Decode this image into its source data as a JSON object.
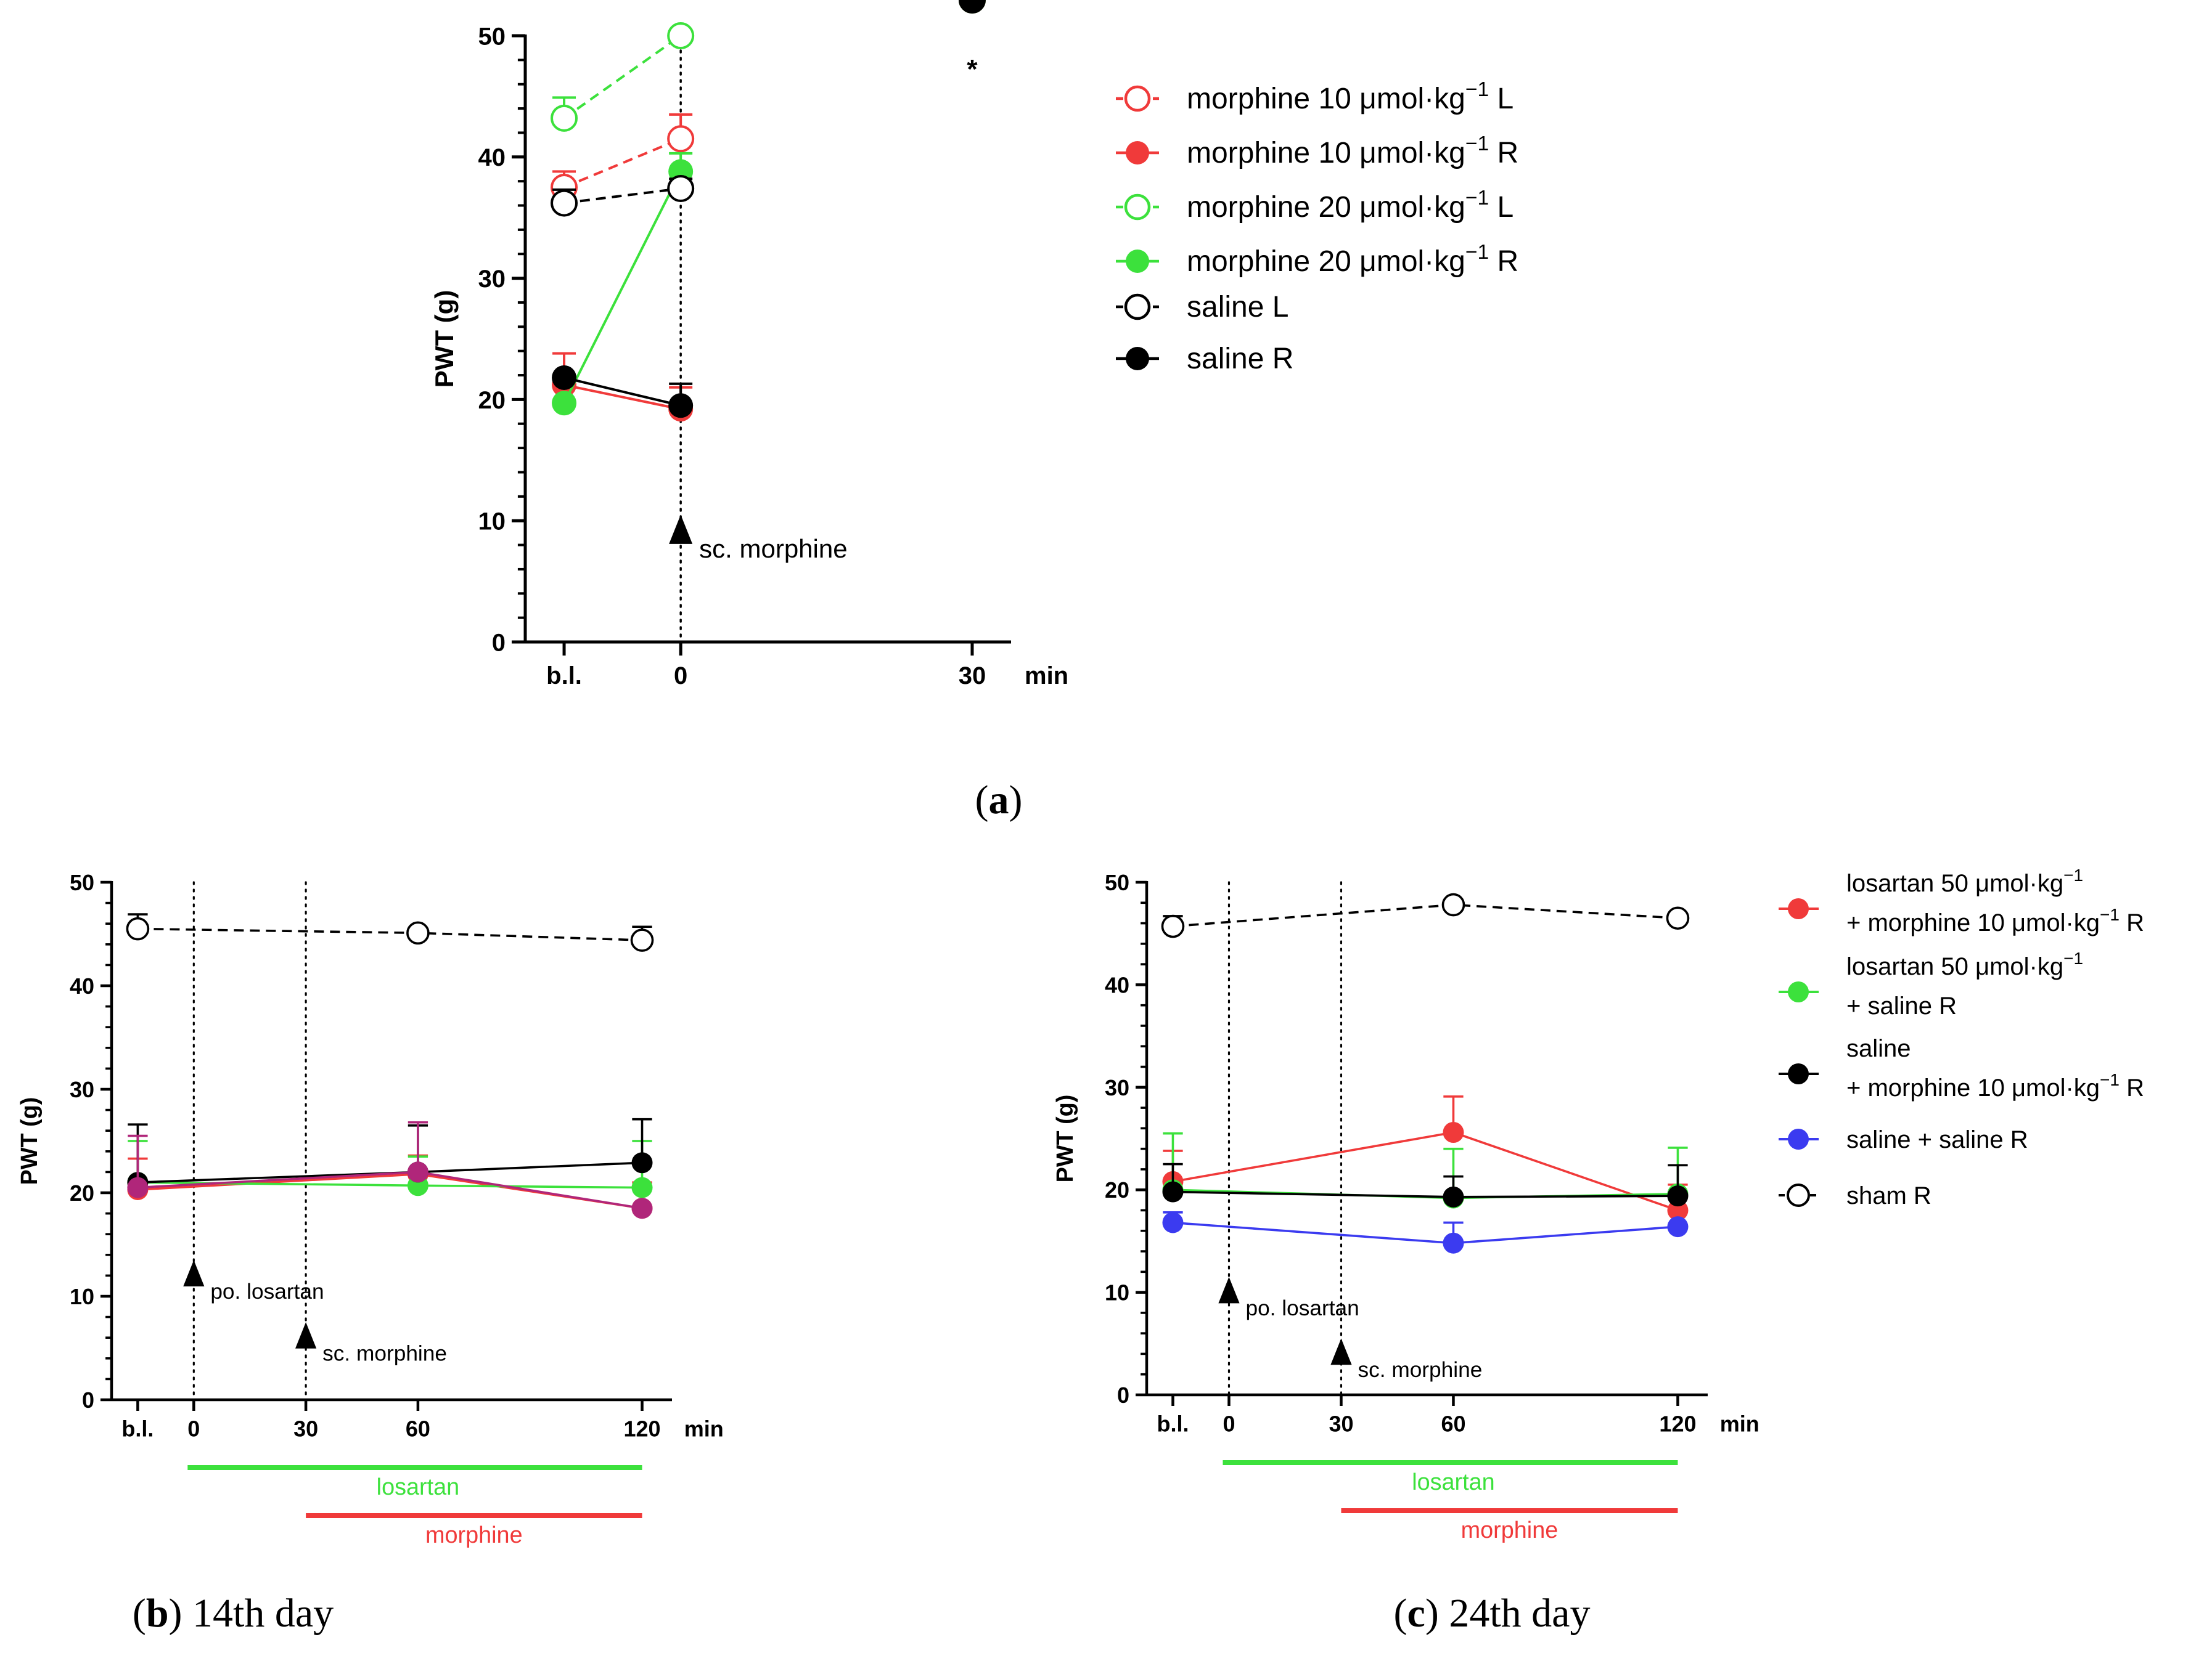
{
  "colors": {
    "red": "#f03a3a",
    "green": "#3ce13c",
    "black": "#000000",
    "blue": "#3b3bf0",
    "purple": "#b0267a"
  },
  "chart_data": [
    {
      "id": "a",
      "type": "line",
      "caption_letter": "a",
      "ylabel": "PWT (g)",
      "x_unit": "min",
      "ylim": [
        0,
        50
      ],
      "yticks": [
        0,
        10,
        20,
        30,
        40,
        50
      ],
      "x_positions": [
        -12,
        0,
        30
      ],
      "xticks": [
        {
          "label": "b.l.",
          "x": -12
        },
        {
          "label": "0",
          "x": 0
        },
        {
          "label": "30",
          "x": 30
        }
      ],
      "xlim": [
        -16,
        34
      ],
      "series": [
        {
          "name": "morphine 10 μmol·kg⁻¹ L",
          "color": "red",
          "marker": "open",
          "dashed": true,
          "y": [
            37.5,
            41.5
          ],
          "err": [
            1.3,
            2.0
          ]
        },
        {
          "name": "morphine 10 μmol·kg⁻¹ R",
          "color": "red",
          "marker": "filled",
          "dashed": false,
          "y": [
            21.2,
            19.2
          ],
          "err": [
            2.6,
            1.8
          ]
        },
        {
          "name": "morphine 20 μmol·kg⁻¹ L",
          "color": "green",
          "marker": "open",
          "dashed": true,
          "y": [
            43.2,
            50.0
          ],
          "err": [
            1.7,
            0
          ]
        },
        {
          "name": "morphine 20 μmol·kg⁻¹ R",
          "color": "green",
          "marker": "filled",
          "dashed": false,
          "y": [
            19.7,
            38.8
          ],
          "err": [
            0,
            1.5
          ]
        },
        {
          "name": "saline L",
          "color": "black",
          "marker": "open",
          "dashed": true,
          "y": [
            36.2,
            37.4
          ],
          "err": [
            1.1,
            0.8
          ]
        },
        {
          "name": "saline R",
          "color": "black",
          "marker": "filled",
          "dashed": false,
          "y": [
            21.8,
            19.5
          ],
          "err": [
            0,
            1.8
          ]
        }
      ],
      "annotations": [
        {
          "text": "*",
          "x": 30,
          "y": 46.5
        },
        {
          "text": "sc. morphine",
          "arrow_x": 0,
          "arrow_y": 10.5
        }
      ]
    },
    {
      "id": "b",
      "type": "line",
      "caption_letter": "b",
      "caption_rest": " 14th day",
      "ylabel": "PWT (g)",
      "x_unit": "min",
      "ylim": [
        0,
        50
      ],
      "yticks": [
        0,
        10,
        20,
        30,
        40,
        50
      ],
      "xticks": [
        {
          "label": "b.l.",
          "x": -15
        },
        {
          "label": "0",
          "x": 0
        },
        {
          "label": "30",
          "x": 30
        },
        {
          "label": "60",
          "x": 60
        },
        {
          "label": "120",
          "x": 120
        }
      ],
      "xlim": [
        -22,
        128
      ],
      "series": [
        {
          "name": "losartan 50 μmol·kg⁻¹ + morphine 10 μmol·kg⁻¹ R",
          "color": "red",
          "marker": "filled",
          "dashed": false,
          "x": [
            -15,
            60,
            120
          ],
          "y": [
            20.3,
            21.8,
            18.5
          ],
          "err": [
            3.0,
            1.8,
            2.5
          ]
        },
        {
          "name": "losartan 50 μmol·kg⁻¹ + saline R",
          "color": "green",
          "marker": "filled",
          "dashed": false,
          "x": [
            -15,
            60,
            120
          ],
          "y": [
            21.0,
            20.7,
            20.5
          ],
          "err": [
            4.0,
            2.8,
            4.5
          ]
        },
        {
          "name": "saline + morphine 10 μmol·kg⁻¹ R",
          "color": "black",
          "marker": "filled",
          "dashed": false,
          "x": [
            -15,
            60,
            120
          ],
          "y": [
            21.0,
            22.0,
            22.9
          ],
          "err": [
            5.6,
            4.5,
            4.2
          ]
        },
        {
          "name": "saline + saline R",
          "color": "purple",
          "marker": "filled",
          "dashed": false,
          "x": [
            -15,
            60,
            120
          ],
          "y": [
            20.5,
            22.0,
            18.5
          ],
          "err": [
            5.0,
            4.8,
            0
          ]
        },
        {
          "name": "sham R",
          "color": "black",
          "marker": "open",
          "dashed": true,
          "x": [
            -15,
            60,
            120
          ],
          "y": [
            45.5,
            45.1,
            44.4
          ],
          "err": [
            1.4,
            0,
            1.3
          ]
        }
      ],
      "vlines": [
        0,
        30
      ],
      "annotations": [
        {
          "text": "po. losartan",
          "arrow_x": 0,
          "arrow_y": 13.5
        },
        {
          "text": "sc. morphine",
          "arrow_x": 30,
          "arrow_y": 7.5
        }
      ],
      "bars": [
        {
          "label": "losartan",
          "color": "green",
          "from": 0,
          "to": 120
        },
        {
          "label": "morphine",
          "color": "red",
          "from": 30,
          "to": 120
        }
      ]
    },
    {
      "id": "c",
      "type": "line",
      "caption_letter": "c",
      "caption_rest": " 24th day",
      "ylabel": "PWT (g)",
      "x_unit": "min",
      "ylim": [
        0,
        50
      ],
      "yticks": [
        0,
        10,
        20,
        30,
        40,
        50
      ],
      "xticks": [
        {
          "label": "b.l.",
          "x": -15
        },
        {
          "label": "0",
          "x": 0
        },
        {
          "label": "30",
          "x": 30
        },
        {
          "label": "60",
          "x": 60
        },
        {
          "label": "120",
          "x": 120
        }
      ],
      "xlim": [
        -22,
        128
      ],
      "series": [
        {
          "name": "losartan 50 μmol·kg⁻¹ + morphine 10 μmol·kg⁻¹ R",
          "color": "red",
          "marker": "filled",
          "dashed": false,
          "x": [
            -15,
            60,
            120
          ],
          "y": [
            20.8,
            25.6,
            18.0
          ],
          "err": [
            3.0,
            3.5,
            2.5
          ]
        },
        {
          "name": "losartan 50 μmol·kg⁻¹ + saline R",
          "color": "green",
          "marker": "filled",
          "dashed": false,
          "x": [
            -15,
            60,
            120
          ],
          "y": [
            20.0,
            19.2,
            19.6
          ],
          "err": [
            5.5,
            4.8,
            4.5
          ]
        },
        {
          "name": "saline + morphine 10 μmol·kg⁻¹ R",
          "color": "black",
          "marker": "filled",
          "dashed": false,
          "x": [
            -15,
            60,
            120
          ],
          "y": [
            19.8,
            19.3,
            19.4
          ],
          "err": [
            2.7,
            2.0,
            3.0
          ]
        },
        {
          "name": "saline + saline R",
          "color": "blue",
          "marker": "filled",
          "dashed": false,
          "x": [
            -15,
            60,
            120
          ],
          "y": [
            16.8,
            14.8,
            16.4
          ],
          "err": [
            1.0,
            2.0,
            0
          ]
        },
        {
          "name": "sham R",
          "color": "black",
          "marker": "open",
          "dashed": true,
          "x": [
            -15,
            60,
            120
          ],
          "y": [
            45.7,
            47.8,
            46.5
          ],
          "err": [
            1.0,
            0,
            0
          ]
        }
      ],
      "vlines": [
        0,
        30
      ],
      "annotations": [
        {
          "text": "po. losartan",
          "arrow_x": 0,
          "arrow_y": 11.5
        },
        {
          "text": "sc. morphine",
          "arrow_x": 30,
          "arrow_y": 5.5
        }
      ],
      "bars": [
        {
          "label": "losartan",
          "color": "green",
          "from": 0,
          "to": 120
        },
        {
          "label": "morphine",
          "color": "red",
          "from": 30,
          "to": 120
        }
      ]
    }
  ],
  "legend_a": [
    {
      "text": "morphine 10 μmol·kg",
      "sup": "−1",
      "tail": " L",
      "color": "red",
      "marker": "open",
      "dashed": true
    },
    {
      "text": "morphine 10 μmol·kg",
      "sup": "−1",
      "tail": " R",
      "color": "red",
      "marker": "filled",
      "dashed": false
    },
    {
      "text": "morphine 20 μmol·kg",
      "sup": "−1",
      "tail": " L",
      "color": "green",
      "marker": "open",
      "dashed": true
    },
    {
      "text": "morphine 20 μmol·kg",
      "sup": "−1",
      "tail": " R",
      "color": "green",
      "marker": "filled",
      "dashed": false
    },
    {
      "text": "saline L",
      "sup": "",
      "tail": "",
      "color": "black",
      "marker": "open",
      "dashed": true
    },
    {
      "text": "saline R",
      "sup": "",
      "tail": "",
      "color": "black",
      "marker": "filled",
      "dashed": false
    }
  ],
  "legend_c": [
    {
      "color": "red",
      "marker": "filled",
      "dashed": false,
      "lines": [
        {
          "text": "losartan 50 μmol·kg",
          "sup": "−1",
          "tail": ""
        },
        {
          "text": "+ morphine 10 μmol·kg",
          "sup": "−1",
          "tail": " R"
        }
      ]
    },
    {
      "color": "green",
      "marker": "filled",
      "dashed": false,
      "lines": [
        {
          "text": "losartan 50 μmol·kg",
          "sup": "−1",
          "tail": ""
        },
        {
          "text": "+ saline R",
          "sup": "",
          "tail": ""
        }
      ]
    },
    {
      "color": "black",
      "marker": "filled",
      "dashed": false,
      "lines": [
        {
          "text": "saline",
          "sup": "",
          "tail": ""
        },
        {
          "text": "+ morphine 10 μmol·kg",
          "sup": "−1",
          "tail": " R"
        }
      ]
    },
    {
      "color": "blue",
      "marker": "filled",
      "dashed": false,
      "lines": [
        {
          "text": "saline + saline R",
          "sup": "",
          "tail": ""
        }
      ]
    },
    {
      "color": "black",
      "marker": "open",
      "dashed": true,
      "lines": [
        {
          "text": "sham R",
          "sup": "",
          "tail": ""
        }
      ]
    }
  ]
}
